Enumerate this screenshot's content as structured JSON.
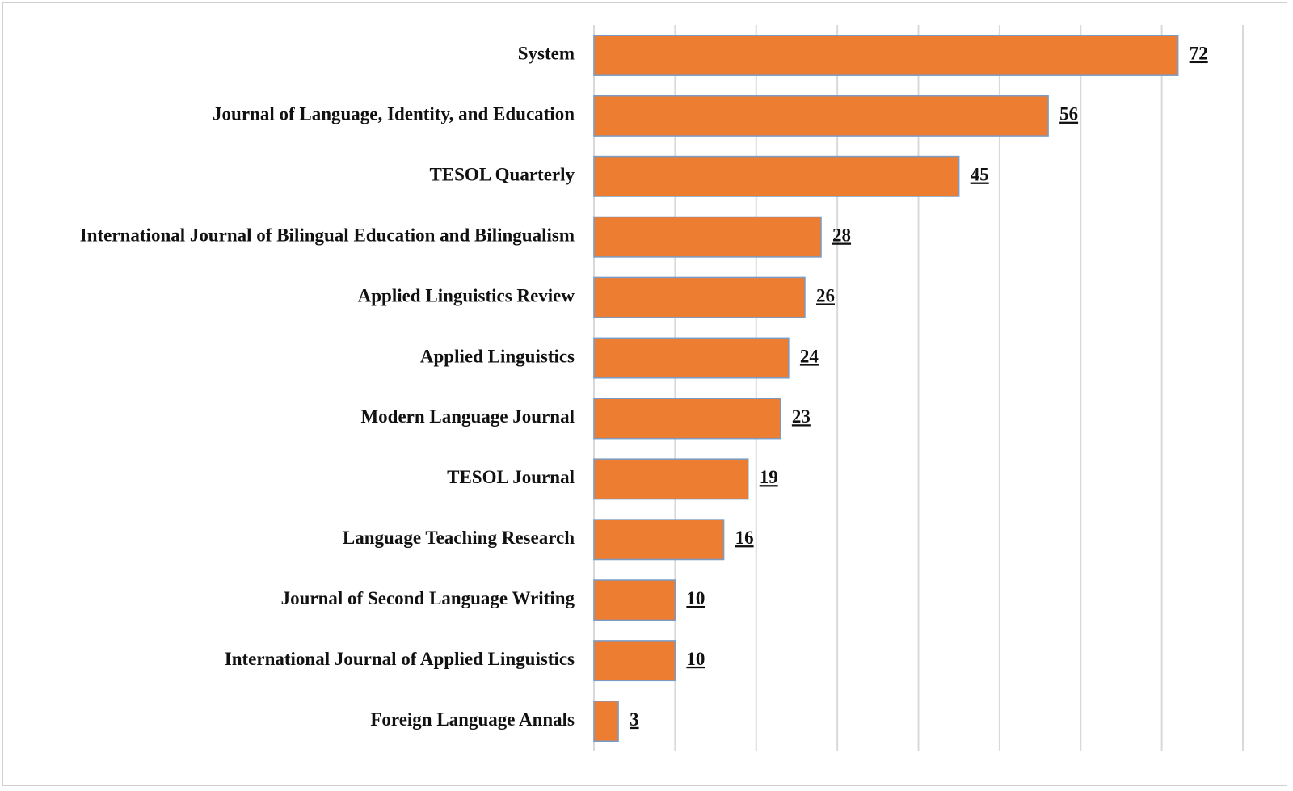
{
  "chart_data": {
    "type": "bar",
    "orientation": "horizontal",
    "title": "",
    "xlabel": "",
    "ylabel": "",
    "categories": [
      "System",
      "Journal of Language, Identity, and Education",
      "TESOL Quarterly",
      "International Journal of Bilingual Education and Bilingualism",
      "Applied Linguistics Review",
      "Applied Linguistics",
      "Modern Language Journal",
      "TESOL Journal",
      "Language Teaching Research",
      "Journal of Second Language Writing",
      "International Journal of Applied Linguistics",
      "Foreign Language Annals"
    ],
    "values": [
      72,
      56,
      45,
      28,
      26,
      24,
      23,
      19,
      16,
      10,
      10,
      3
    ],
    "xlim": [
      0,
      80
    ],
    "grid": true,
    "legend": "none",
    "data_labels": true,
    "bar_color": "#ed7d31"
  }
}
